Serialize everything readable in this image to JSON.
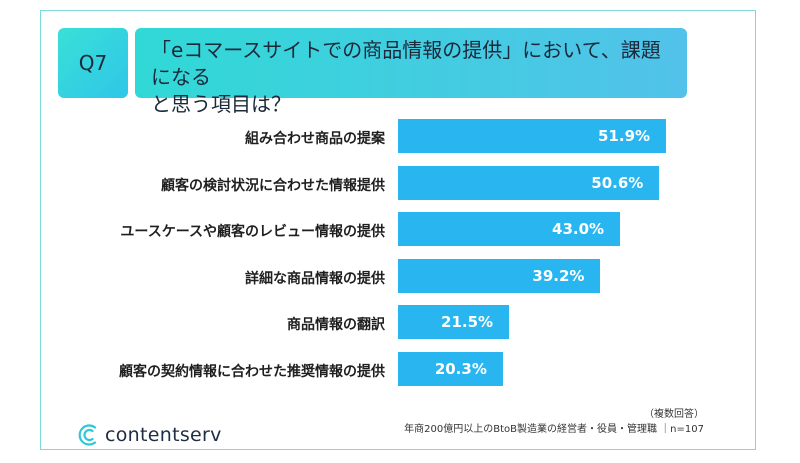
{
  "question": {
    "badge": "Q7",
    "line1": "「eコマースサイトでの商品情報の提供」において、課題になる",
    "line2": "と思う項目は？"
  },
  "chart_data": {
    "type": "bar",
    "orientation": "horizontal",
    "categories": [
      "組み合わせ商品の提案",
      "顧客の検討状況に合わせた情報提供",
      "ユースケースや顧客のレビュー情報の提供",
      "詳細な商品情報の提供",
      "商品情報の翻訳",
      "顧客の契約情報に合わせた推奨情報の提供"
    ],
    "values": [
      51.9,
      50.6,
      43.0,
      39.2,
      21.5,
      20.3
    ],
    "value_labels": [
      "51.9%",
      "50.6%",
      "43.0%",
      "39.2%",
      "21.5%",
      "20.3%"
    ],
    "unit": "%",
    "bar_color": "#29b6f0",
    "grid": false,
    "legend": false
  },
  "footnote": {
    "line1": "（複数回答）",
    "line2": "年商200億円以上のBtoB製造業の経営者・役員・管理職 ｜n=107"
  },
  "brand": {
    "name": "contentserv",
    "color": "#1f2d44"
  }
}
